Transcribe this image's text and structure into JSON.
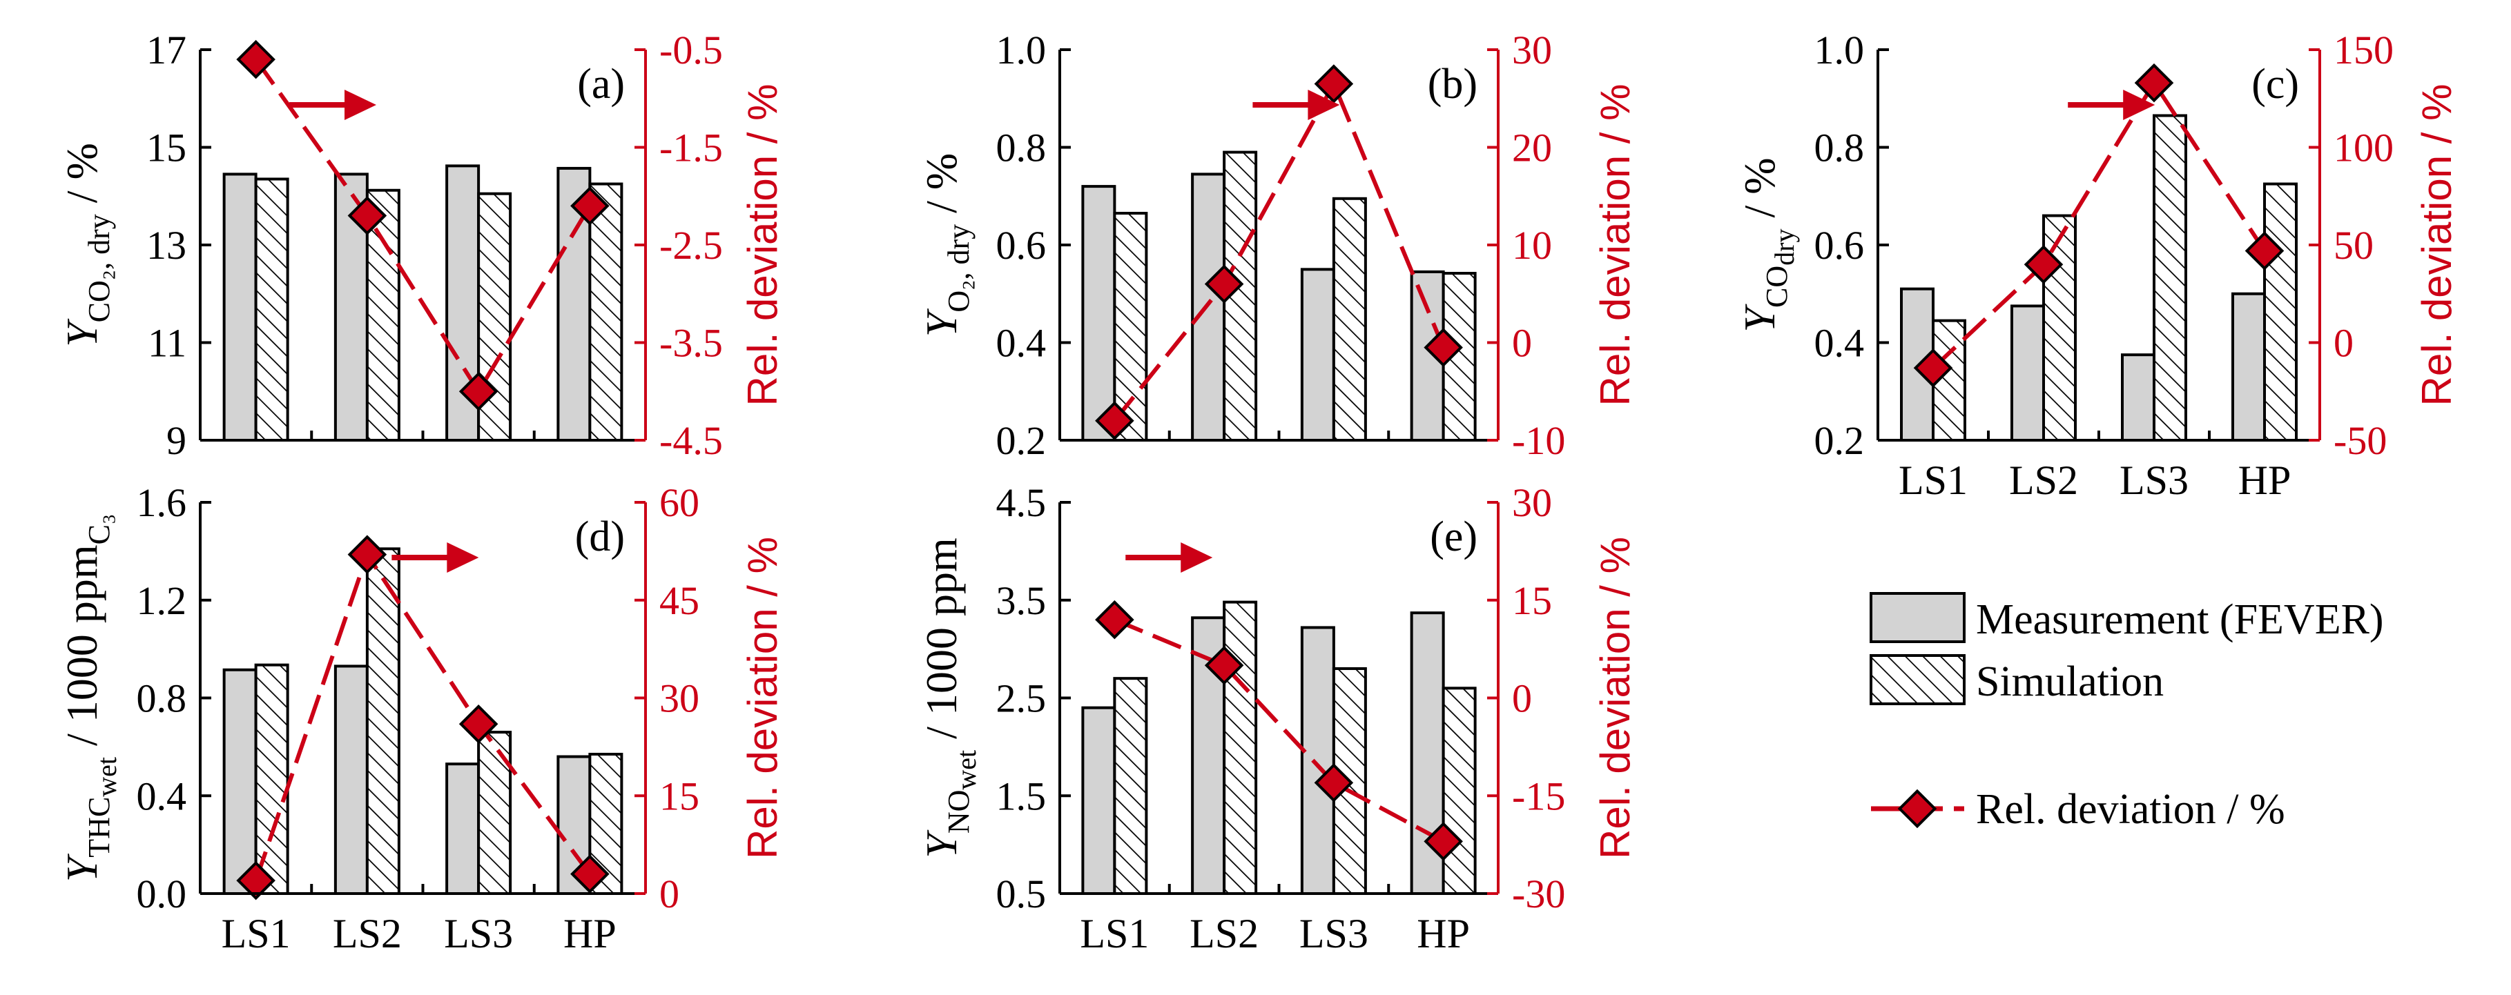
{
  "colors": {
    "measurement_fill": "#d3d3d3",
    "axis_black": "#000000",
    "deviation_red": "#cc0016",
    "marker_fill": "#cc0016"
  },
  "legend": {
    "measurement": "Measurement (FEVER)",
    "simulation": "Simulation",
    "deviation": "Rel. deviation / %"
  },
  "right_axis_label": "Rel. deviation / %",
  "chart_data": [
    {
      "id": "a",
      "type": "bar",
      "panel_label": "(a)",
      "categories": [
        "LS1",
        "LS2",
        "LS3",
        "HP"
      ],
      "series": [
        {
          "name": "Measurement (FEVER)",
          "values": [
            14.45,
            14.45,
            14.62,
            14.57
          ]
        },
        {
          "name": "Simulation",
          "values": [
            14.35,
            14.12,
            14.05,
            14.25
          ]
        }
      ],
      "deviation": [
        -0.6,
        -2.2,
        -4.0,
        -2.1
      ],
      "ylabel_main": "Y",
      "ylabel_sub": "CO₂, dry",
      "ylabel_tail": " / %",
      "ylim": [
        9,
        17
      ],
      "yticks": [
        "9",
        "11",
        "13",
        "15",
        "17"
      ],
      "y2lim": [
        -4.5,
        -0.5
      ],
      "y2ticks": [
        "-4.5",
        "-3.5",
        "-2.5",
        "-1.5",
        "-0.5"
      ],
      "show_categories": false
    },
    {
      "id": "b",
      "type": "bar",
      "panel_label": "(b)",
      "categories": [
        "LS1",
        "LS2",
        "LS3",
        "HP"
      ],
      "series": [
        {
          "name": "Measurement (FEVER)",
          "values": [
            0.72,
            0.745,
            0.55,
            0.545
          ]
        },
        {
          "name": "Simulation",
          "values": [
            0.665,
            0.79,
            0.695,
            0.542
          ]
        }
      ],
      "deviation": [
        -8,
        6,
        26.5,
        -0.5
      ],
      "ylabel_main": "Y",
      "ylabel_sub": "O₂, dry",
      "ylabel_tail": " / %",
      "ylim": [
        0.2,
        1.0
      ],
      "yticks": [
        "0.2",
        "0.4",
        "0.6",
        "0.8",
        "1.0"
      ],
      "y2lim": [
        -10,
        30
      ],
      "y2ticks": [
        "-10",
        "0",
        "10",
        "20",
        "30"
      ],
      "show_categories": false
    },
    {
      "id": "c",
      "type": "bar",
      "panel_label": "(c)",
      "categories": [
        "LS1",
        "LS2",
        "LS3",
        "HP"
      ],
      "series": [
        {
          "name": "Measurement (FEVER)",
          "values": [
            0.51,
            0.475,
            0.375,
            0.5
          ]
        },
        {
          "name": "Simulation",
          "values": [
            0.445,
            0.66,
            0.865,
            0.725
          ]
        }
      ],
      "deviation": [
        -13,
        40,
        133,
        47
      ],
      "ylabel_main": "Y",
      "ylabel_sub": "CO",
      "ylabel_subsub": "dry",
      "ylabel_tail": " / %",
      "ylim": [
        0.2,
        1.0
      ],
      "yticks": [
        "0.2",
        "0.4",
        "0.6",
        "0.8",
        "1.0"
      ],
      "y2lim": [
        -50,
        150
      ],
      "y2ticks": [
        "-50",
        "0",
        "50",
        "100",
        "150"
      ],
      "show_categories": true
    },
    {
      "id": "d",
      "type": "bar",
      "panel_label": "(d)",
      "categories": [
        "LS1",
        "LS2",
        "LS3",
        "HP"
      ],
      "series": [
        {
          "name": "Measurement (FEVER)",
          "values": [
            0.915,
            0.93,
            0.53,
            0.56
          ]
        },
        {
          "name": "Simulation",
          "values": [
            0.935,
            1.41,
            0.66,
            0.57
          ]
        }
      ],
      "deviation": [
        2,
        52,
        26,
        3
      ],
      "ylabel_main": "Y",
      "ylabel_sub": "THC",
      "ylabel_subsub": "wet",
      "ylabel_tail": " / 1000 ppm",
      "ylabel_tail_sub": "C₃",
      "ylim": [
        0.0,
        1.6
      ],
      "yticks": [
        "0.0",
        "0.4",
        "0.8",
        "1.2",
        "1.6"
      ],
      "y2lim": [
        0,
        60
      ],
      "y2ticks": [
        "0",
        "15",
        "30",
        "45",
        "60"
      ],
      "show_categories": true
    },
    {
      "id": "e",
      "type": "bar",
      "panel_label": "(e)",
      "categories": [
        "LS1",
        "LS2",
        "LS3",
        "HP"
      ],
      "series": [
        {
          "name": "Measurement (FEVER)",
          "values": [
            2.4,
            3.32,
            3.22,
            3.37
          ]
        },
        {
          "name": "Simulation",
          "values": [
            2.7,
            3.48,
            2.8,
            2.6
          ]
        }
      ],
      "deviation": [
        12,
        5,
        -13,
        -22
      ],
      "ylabel_main": "Y",
      "ylabel_sub": "NO",
      "ylabel_subsub": "wet",
      "ylabel_tail": " / 1000 ppm",
      "ylim": [
        0.5,
        4.5
      ],
      "yticks": [
        "0.5",
        "1.5",
        "2.5",
        "3.5",
        "4.5"
      ],
      "y2lim": [
        -30,
        30
      ],
      "y2ticks": [
        "-30",
        "-15",
        "0",
        "15",
        "30"
      ],
      "show_categories": true
    }
  ]
}
